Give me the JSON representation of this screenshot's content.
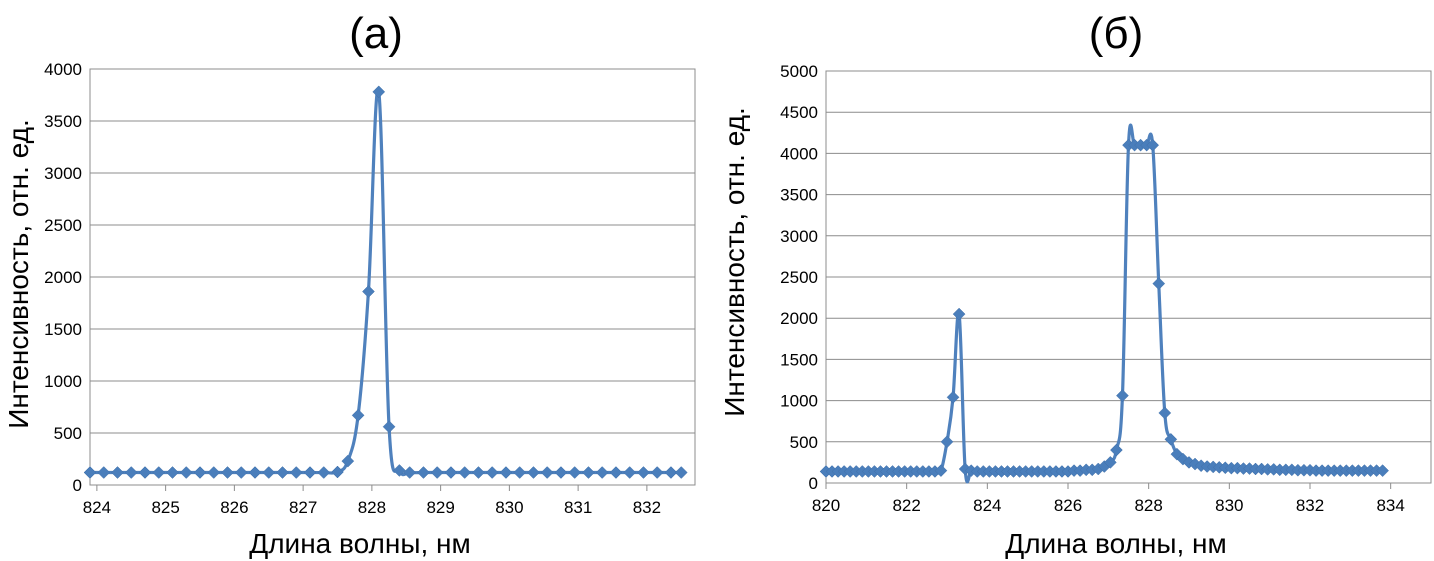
{
  "chart_data": [
    {
      "type": "line",
      "title": "(а)",
      "xlabel": "Длина волны, нм",
      "ylabel": "Интенсивность, отн. ед.",
      "xlim": [
        823.9,
        832.7
      ],
      "ylim": [
        0,
        4000
      ],
      "xticks": [
        824,
        825,
        826,
        827,
        828,
        829,
        830,
        831,
        832
      ],
      "yticks": [
        0,
        500,
        1000,
        1500,
        2000,
        2500,
        3000,
        3500,
        4000
      ],
      "grid": "horizontal",
      "marker": "diamond",
      "color": "#4f81bd",
      "x": [
        823.9,
        824.1,
        824.3,
        824.5,
        824.7,
        824.9,
        825.1,
        825.3,
        825.5,
        825.7,
        825.9,
        826.1,
        826.3,
        826.5,
        826.7,
        826.9,
        827.1,
        827.3,
        827.5,
        827.65,
        827.8,
        827.95,
        828.1,
        828.25,
        828.4,
        828.55,
        828.75,
        828.95,
        829.15,
        829.35,
        829.55,
        829.75,
        829.95,
        830.15,
        830.35,
        830.55,
        830.75,
        830.95,
        831.15,
        831.35,
        831.55,
        831.75,
        831.95,
        832.15,
        832.35,
        832.5
      ],
      "y": [
        120,
        120,
        120,
        120,
        120,
        120,
        120,
        120,
        120,
        120,
        120,
        120,
        120,
        120,
        120,
        120,
        120,
        120,
        125,
        230,
        670,
        1860,
        3780,
        560,
        140,
        120,
        120,
        120,
        120,
        120,
        120,
        120,
        120,
        120,
        120,
        120,
        120,
        120,
        120,
        120,
        120,
        120,
        120,
        120,
        120,
        120
      ]
    },
    {
      "type": "line",
      "title": "(б)",
      "xlabel": "Длина волны, нм",
      "ylabel": "Интенсивность, отн. ед.",
      "xlim": [
        820,
        835
      ],
      "ylim": [
        0,
        5000
      ],
      "xticks": [
        820,
        822,
        824,
        826,
        828,
        830,
        832,
        834
      ],
      "yticks": [
        0,
        500,
        1000,
        1500,
        2000,
        2500,
        3000,
        3500,
        4000,
        4500,
        5000
      ],
      "grid": "horizontal",
      "marker": "diamond",
      "color": "#4f81bd",
      "x": [
        820.0,
        820.15,
        820.3,
        820.45,
        820.6,
        820.75,
        820.9,
        821.05,
        821.2,
        821.35,
        821.5,
        821.65,
        821.8,
        821.95,
        822.1,
        822.25,
        822.4,
        822.55,
        822.7,
        822.85,
        823.0,
        823.15,
        823.3,
        823.45,
        823.6,
        823.75,
        823.9,
        824.05,
        824.2,
        824.35,
        824.5,
        824.65,
        824.8,
        824.95,
        825.1,
        825.25,
        825.4,
        825.55,
        825.7,
        825.85,
        826.0,
        826.15,
        826.3,
        826.45,
        826.6,
        826.75,
        826.9,
        827.05,
        827.2,
        827.35,
        827.5,
        827.65,
        827.8,
        827.95,
        828.1,
        828.25,
        828.4,
        828.55,
        828.7,
        828.85,
        829.0,
        829.15,
        829.3,
        829.45,
        829.6,
        829.75,
        829.9,
        830.05,
        830.2,
        830.35,
        830.5,
        830.65,
        830.8,
        830.95,
        831.1,
        831.25,
        831.4,
        831.55,
        831.7,
        831.85,
        832.0,
        832.15,
        832.3,
        832.45,
        832.6,
        832.75,
        832.9,
        833.05,
        833.2,
        833.35,
        833.5,
        833.65,
        833.8
      ],
      "y": [
        140,
        140,
        140,
        140,
        140,
        140,
        140,
        140,
        140,
        140,
        140,
        140,
        140,
        140,
        140,
        140,
        140,
        140,
        140,
        150,
        500,
        1040,
        2050,
        170,
        150,
        140,
        140,
        140,
        140,
        140,
        140,
        140,
        140,
        140,
        140,
        140,
        140,
        140,
        140,
        140,
        140,
        150,
        150,
        160,
        160,
        170,
        200,
        250,
        400,
        1060,
        4100,
        4100,
        4100,
        4100,
        4100,
        2420,
        850,
        530,
        350,
        290,
        250,
        230,
        210,
        200,
        195,
        190,
        185,
        180,
        180,
        175,
        175,
        170,
        170,
        165,
        165,
        160,
        160,
        160,
        155,
        155,
        155,
        150,
        150,
        150,
        150,
        150,
        150,
        150,
        150,
        150,
        150,
        150,
        150
      ]
    }
  ]
}
